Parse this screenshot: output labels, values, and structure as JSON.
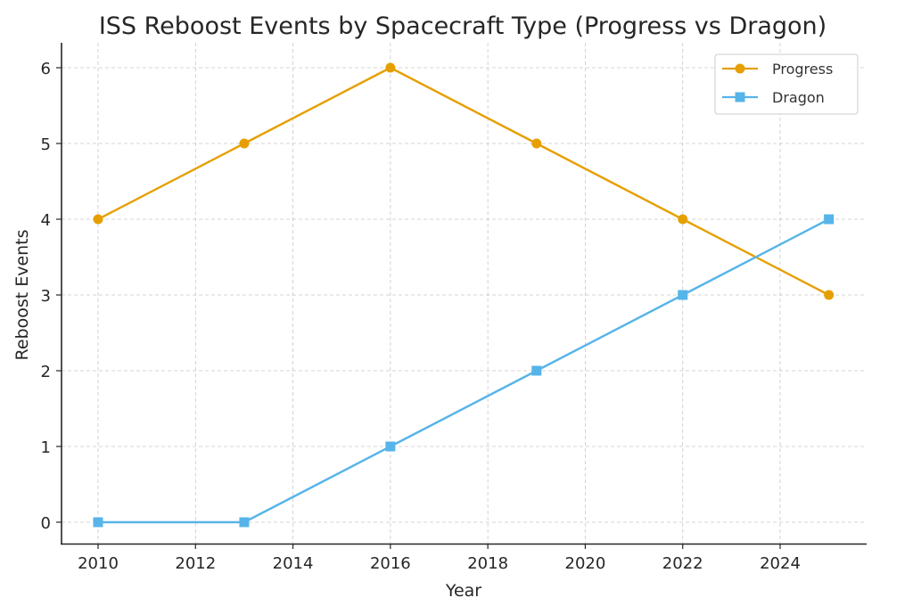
{
  "chart_data": {
    "type": "line",
    "title": "ISS Reboost Events by Spacecraft Type (Progress vs Dragon)",
    "xlabel": "Year",
    "ylabel": "Reboost Events",
    "x": [
      2010,
      2013,
      2016,
      2019,
      2022,
      2025
    ],
    "series": [
      {
        "name": "Progress",
        "values": [
          4,
          5,
          6,
          5,
          4,
          3
        ],
        "color": "#E69F00",
        "marker": "circle"
      },
      {
        "name": "Dragon",
        "values": [
          0,
          0,
          1,
          2,
          3,
          4
        ],
        "color": "#56B4E9",
        "marker": "square"
      }
    ],
    "xticks": [
      2010,
      2012,
      2014,
      2016,
      2018,
      2020,
      2022,
      2024
    ],
    "xtick_labels": [
      "2010",
      "2012",
      "2014",
      "2016",
      "2018",
      "2020",
      "2022",
      "2024"
    ],
    "yticks": [
      0,
      1,
      2,
      3,
      4,
      5,
      6
    ],
    "ytick_labels": [
      "0",
      "1",
      "2",
      "3",
      "4",
      "5",
      "6"
    ],
    "xlim": [
      2009.25,
      2025.75
    ],
    "ylim": [
      -0.3,
      6.3
    ],
    "grid": true,
    "legend": "top-right"
  }
}
